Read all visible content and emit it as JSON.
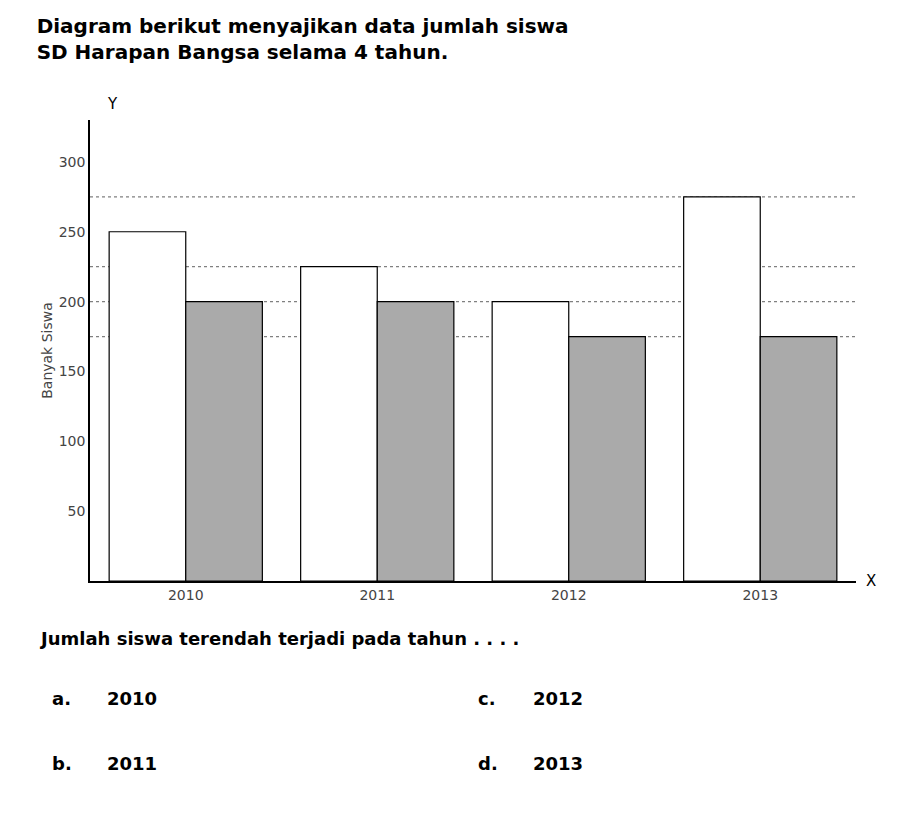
{
  "chart_data": {
    "type": "bar",
    "title": "Diagram berikut menyajikan data jumlah siswa",
    "subtitle": "SD Harapan Bangsa selama 4 tahun.",
    "categories": [
      "2010",
      "2011",
      "2012",
      "2013"
    ],
    "series": [
      {
        "color": "#ffffff",
        "values": [
          250,
          225,
          200,
          275
        ]
      },
      {
        "color": "#aaaaaa",
        "values": [
          200,
          200,
          175,
          175
        ]
      }
    ],
    "ylabel": "Banyak Siswa",
    "axis_names": {
      "x": "X",
      "y": "Y"
    },
    "ylim": [
      0,
      330
    ],
    "yticks": [
      50,
      100,
      150,
      200,
      250,
      300
    ],
    "reference_lines": [
      275,
      225,
      200,
      175
    ],
    "grid": false,
    "annotations": [
      "Jumlah siswa terendah terjadi pada tahun . . . ."
    ],
    "options": [
      {
        "letter": "a.",
        "text": "2010"
      },
      {
        "letter": "b.",
        "text": "2011"
      },
      {
        "letter": "c.",
        "text": "2012"
      },
      {
        "letter": "d.",
        "text": "2013"
      }
    ]
  }
}
